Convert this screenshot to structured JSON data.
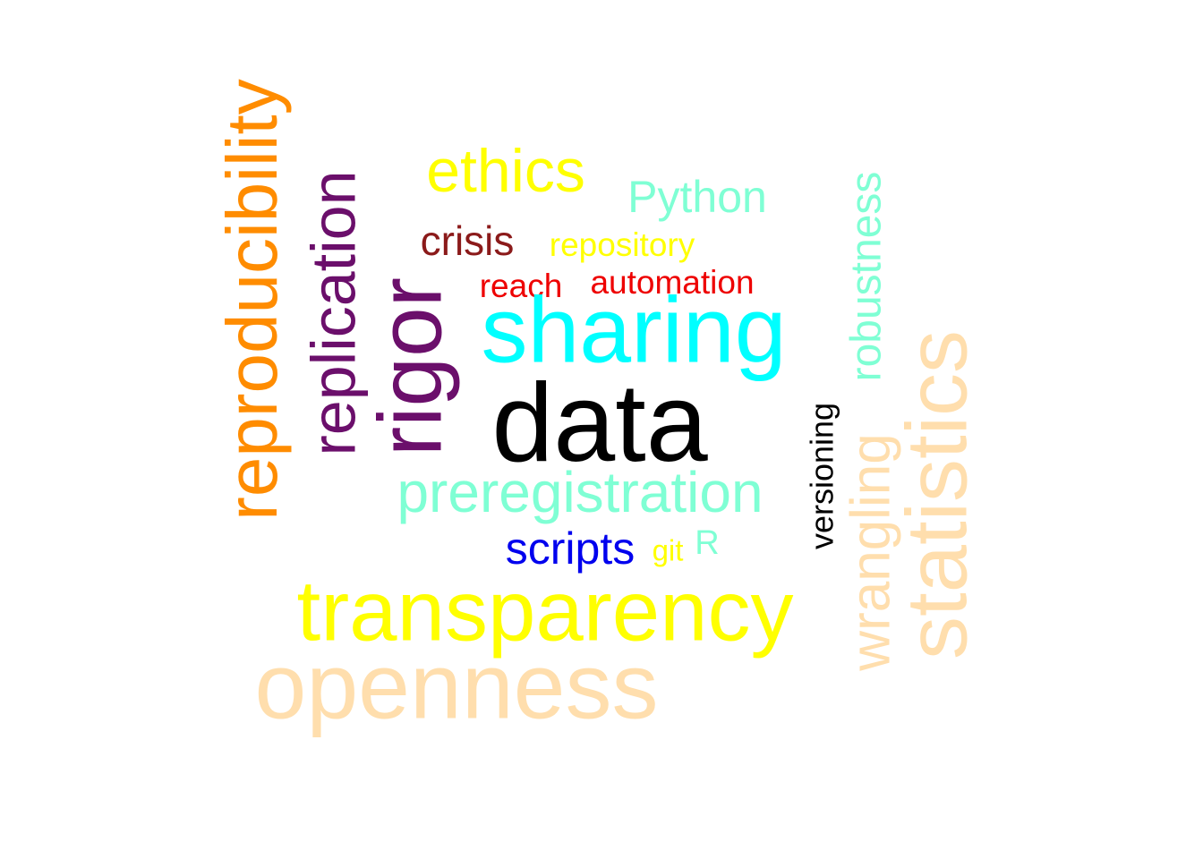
{
  "words": [
    {
      "text": "reproducibility",
      "color": "#FF8C00",
      "orientation": "vertical"
    },
    {
      "text": "replication",
      "color": "#6B0F6B",
      "orientation": "vertical"
    },
    {
      "text": "rigor",
      "color": "#6B0F6B",
      "orientation": "vertical"
    },
    {
      "text": "ethics",
      "color": "#FFFF00",
      "orientation": "horizontal"
    },
    {
      "text": "Python",
      "color": "#7FFFD4",
      "orientation": "horizontal"
    },
    {
      "text": "crisis",
      "color": "#8B1A1A",
      "orientation": "horizontal"
    },
    {
      "text": "repository",
      "color": "#FFFF00",
      "orientation": "horizontal"
    },
    {
      "text": "reach",
      "color": "#EE0000",
      "orientation": "horizontal"
    },
    {
      "text": "automation",
      "color": "#EE0000",
      "orientation": "horizontal"
    },
    {
      "text": "sharing",
      "color": "#00FFFF",
      "orientation": "horizontal"
    },
    {
      "text": "data",
      "color": "#000000",
      "orientation": "horizontal"
    },
    {
      "text": "preregistration",
      "color": "#7FFFD4",
      "orientation": "horizontal"
    },
    {
      "text": "scripts",
      "color": "#0000EE",
      "orientation": "horizontal"
    },
    {
      "text": "git",
      "color": "#FFFF00",
      "orientation": "horizontal"
    },
    {
      "text": "R",
      "color": "#7FFFD4",
      "orientation": "horizontal"
    },
    {
      "text": "transparency",
      "color": "#FFFF00",
      "orientation": "horizontal"
    },
    {
      "text": "openness",
      "color": "#FFDEAD",
      "orientation": "horizontal"
    },
    {
      "text": "versioning",
      "color": "#000000",
      "orientation": "vertical"
    },
    {
      "text": "robustness",
      "color": "#7FFFD4",
      "orientation": "vertical"
    },
    {
      "text": "wrangling",
      "color": "#FFDEAD",
      "orientation": "vertical"
    },
    {
      "text": "statistics",
      "color": "#FFDEAD",
      "orientation": "vertical"
    }
  ]
}
